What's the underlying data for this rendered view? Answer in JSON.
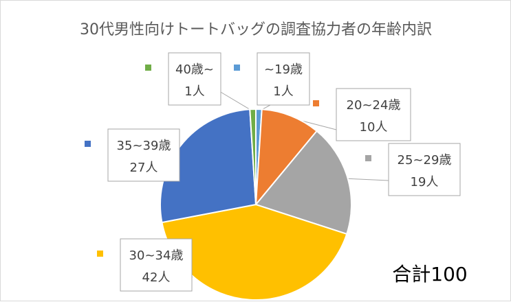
{
  "chart_data": {
    "type": "pie",
    "title": "30代男性向けトートバッグの調査協力者の年齢内訳",
    "categories": [
      "~19歳",
      "20~24歳",
      "25~29歳",
      "30~34歳",
      "35~39歳",
      "40歳~"
    ],
    "values": [
      1,
      10,
      19,
      42,
      27,
      1
    ],
    "value_labels": [
      "1人",
      "10人",
      "19人",
      "42人",
      "27人",
      "1人"
    ],
    "colors": [
      "#5b9bd5",
      "#ed7d31",
      "#a5a5a5",
      "#ffc000",
      "#4472c4",
      "#70ad47"
    ],
    "legend": "none (category labels shown in callouts)",
    "annotation": "合計100"
  }
}
